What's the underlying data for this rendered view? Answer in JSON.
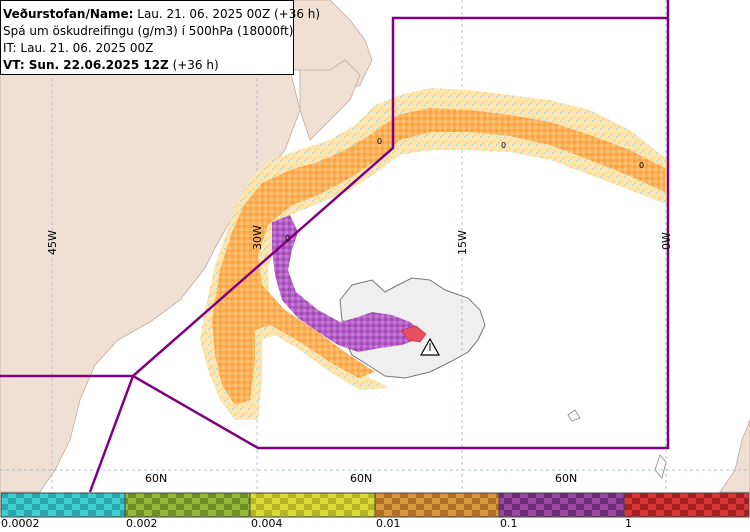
{
  "info_box": {
    "title_label": "Veðurstofan/Name:",
    "title_value": " Lau. 21. 06. 2025 00Z (+36 h)",
    "description": "Spá um öskudreifingu (g/m3) í 500hPa (18000ft)",
    "it_line": "IT: Lau. 21. 06. 2025 00Z",
    "vt_label": "VT: Sun. 22.06.2025 12Z",
    "vt_suffix": " (+36 h)"
  },
  "graticule": {
    "lon_labels": [
      "45W",
      "30W",
      "15W",
      "0W"
    ],
    "lat_labels": [
      "60N",
      "60N",
      "60N"
    ]
  },
  "contour_labels": [
    "0",
    "0",
    "0",
    "0"
  ],
  "legend": {
    "values": [
      "0.0002",
      "0.002",
      "0.004",
      "0.01",
      "0.1",
      "1"
    ],
    "colors": [
      "#3fcfd0",
      "#88a832",
      "#cfcf30",
      "#cc8a32",
      "#8a3a90",
      "#cc2a2a"
    ]
  },
  "colors": {
    "ocean": "#ffffff",
    "land": "#f0e0d4",
    "iceland": "#efefef",
    "boundary": "#800080",
    "ash_light": "#ffd8a0",
    "ash_mid": "#ffb055",
    "ash_high": "#b05cc0",
    "ash_max": "#e03040"
  }
}
